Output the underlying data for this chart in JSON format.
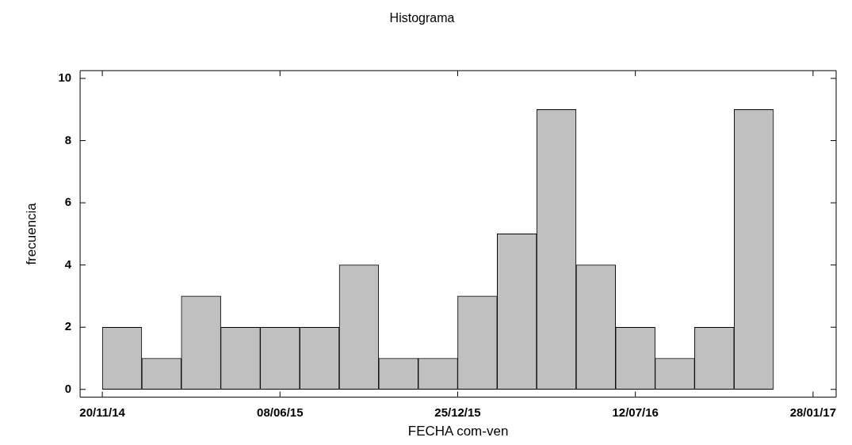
{
  "chart_data": {
    "type": "histogram",
    "title": "Histograma",
    "xlabel": "FECHA com-ven",
    "ylabel": "frecuencia",
    "bins": [
      "2014-11-20",
      "2015-01-03T10:40",
      "2015-02-16T21:20",
      "2015-04-02T08:00",
      "2015-05-16T18:40",
      "2015-06-30T05:20",
      "2015-08-13T16:00",
      "2015-09-27T02:40",
      "2015-11-10T13:20",
      "2015-12-25",
      "2016-02-07T10:40",
      "2016-03-22T21:20",
      "2016-05-06T08:00",
      "2016-06-19T18:40",
      "2016-08-03T05:20",
      "2016-09-16T16:00",
      "2016-10-31T02:40",
      "2016-12-14T13:20",
      "2017-01-28"
    ],
    "values": [
      2,
      1,
      3,
      2,
      2,
      2,
      4,
      1,
      1,
      3,
      5,
      9,
      4,
      2,
      1,
      2,
      9,
      0
    ],
    "color": "#c0c0c0",
    "xlim": [
      "2014-10-26",
      "2017-02-23"
    ],
    "xticks": [
      {
        "value": "2014-11-20",
        "label": "20/11/14"
      },
      {
        "value": "2015-06-08",
        "label": "08/06/15"
      },
      {
        "value": "2015-12-25",
        "label": "25/12/15"
      },
      {
        "value": "2016-07-12",
        "label": "12/07/16"
      },
      {
        "value": "2017-01-28",
        "label": "28/01/17"
      }
    ],
    "ylim": [
      -0.25,
      10.25
    ],
    "yticks": [
      0,
      2,
      4,
      6,
      8,
      10
    ]
  }
}
